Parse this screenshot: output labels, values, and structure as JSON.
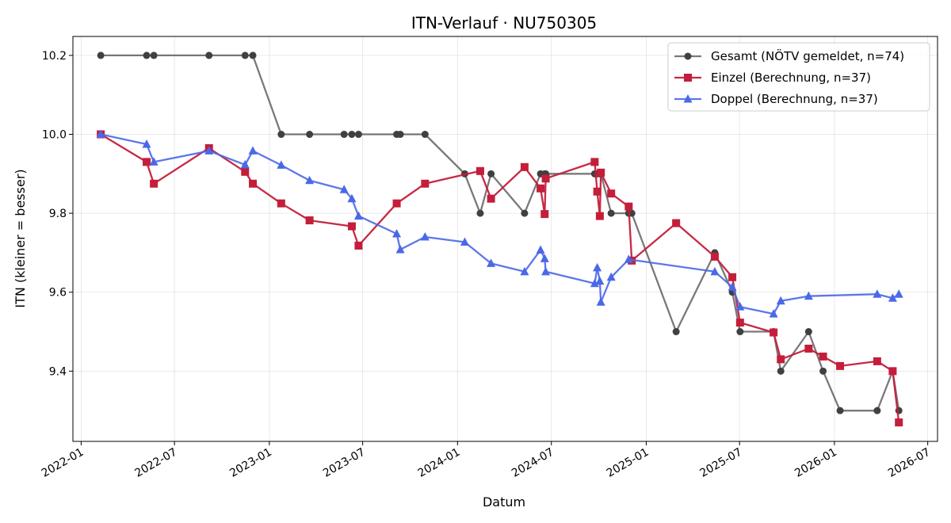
{
  "chart_data": {
    "type": "line",
    "title": "ITN-Verlauf · NU750305",
    "xlabel": "Datum",
    "ylabel": "ITN  (kleiner = besser)",
    "xlim": [
      "2021-12-16",
      "2026-07-20"
    ],
    "ylim": [
      9.222,
      10.248
    ],
    "grid": true,
    "legend_position": "top-right",
    "x_ticks": [
      "2022-01-01",
      "2022-07-01",
      "2023-01-01",
      "2023-07-01",
      "2024-01-01",
      "2024-07-01",
      "2025-01-01",
      "2025-07-01",
      "2026-01-01",
      "2026-07-01"
    ],
    "x_tick_labels": [
      "2022-01",
      "2022-07",
      "2023-01",
      "2023-07",
      "2024-01",
      "2024-07",
      "2025-01",
      "2025-07",
      "2026-01",
      "2026-07"
    ],
    "y_ticks": [
      9.4,
      9.6,
      9.8,
      10.0,
      10.2
    ],
    "y_tick_labels": [
      "9.4",
      "9.6",
      "9.8",
      "10.0",
      "10.2"
    ],
    "series": [
      {
        "name": "Gesamt (NÖTV gemeldet, n=74)",
        "color": "#404040",
        "marker": "circle",
        "line_opacity": 0.7,
        "x": [
          "2022-02-08",
          "2022-05-08",
          "2022-05-22",
          "2022-09-06",
          "2022-11-15",
          "2022-11-30",
          "2023-01-24",
          "2023-03-20",
          "2023-05-26",
          "2023-06-10",
          "2023-06-23",
          "2023-09-05",
          "2023-09-12",
          "2023-10-30",
          "2024-01-15",
          "2024-02-14",
          "2024-03-06",
          "2024-05-10",
          "2024-06-10",
          "2024-06-18",
          "2024-06-20",
          "2024-09-23",
          "2024-09-28",
          "2024-10-03",
          "2024-10-05",
          "2024-10-25",
          "2024-11-28",
          "2024-12-04",
          "2025-02-28",
          "2025-05-14",
          "2025-06-17",
          "2025-07-02",
          "2025-09-05",
          "2025-09-19",
          "2025-11-12",
          "2025-12-10",
          "2026-01-12",
          "2026-03-25",
          "2026-04-24",
          "2026-05-06"
        ],
        "y": [
          10.2,
          10.2,
          10.2,
          10.2,
          10.2,
          10.2,
          10.0,
          10.0,
          10.0,
          10.0,
          10.0,
          10.0,
          10.0,
          10.0,
          9.9,
          9.8,
          9.9,
          9.8,
          9.9,
          9.9,
          9.9,
          9.9,
          9.9,
          9.9,
          9.9,
          9.8,
          9.8,
          9.8,
          9.5,
          9.7,
          9.6,
          9.5,
          9.5,
          9.4,
          9.5,
          9.4,
          9.3,
          9.3,
          9.4,
          9.3
        ]
      },
      {
        "name": "Einzel (Berechnung, n=37)",
        "color": "#c41e3a",
        "marker": "square",
        "line_opacity": 0.95,
        "x": [
          "2022-02-08",
          "2022-05-08",
          "2022-05-22",
          "2022-09-06",
          "2022-11-15",
          "2022-11-30",
          "2023-01-24",
          "2023-03-20",
          "2023-06-10",
          "2023-06-23",
          "2023-09-05",
          "2023-10-30",
          "2024-02-14",
          "2024-03-06",
          "2024-05-10",
          "2024-06-10",
          "2024-06-18",
          "2024-06-20",
          "2024-09-23",
          "2024-09-28",
          "2024-10-03",
          "2024-10-05",
          "2024-10-25",
          "2024-11-28",
          "2024-12-04",
          "2025-02-28",
          "2025-05-14",
          "2025-06-17",
          "2025-07-02",
          "2025-09-05",
          "2025-09-19",
          "2025-11-12",
          "2025-12-10",
          "2026-01-12",
          "2026-03-25",
          "2026-04-24",
          "2026-05-06"
        ],
        "y": [
          10.0,
          9.93,
          9.875,
          9.965,
          9.905,
          9.875,
          9.825,
          9.782,
          9.767,
          9.718,
          9.825,
          9.875,
          9.907,
          9.837,
          9.917,
          9.863,
          9.798,
          9.888,
          9.93,
          9.855,
          9.793,
          9.903,
          9.85,
          9.817,
          9.68,
          9.775,
          9.69,
          9.638,
          9.523,
          9.498,
          9.43,
          9.457,
          9.437,
          9.413,
          9.425,
          9.4,
          9.27
        ]
      },
      {
        "name": "Doppel (Berechnung, n=37)",
        "color": "#4a68e8",
        "marker": "triangle",
        "line_opacity": 0.9,
        "x": [
          "2022-02-08",
          "2022-05-08",
          "2022-05-22",
          "2022-09-06",
          "2022-11-15",
          "2022-11-30",
          "2023-01-24",
          "2023-03-20",
          "2023-05-26",
          "2023-06-10",
          "2023-06-23",
          "2023-09-05",
          "2023-09-12",
          "2023-10-30",
          "2024-01-15",
          "2024-03-06",
          "2024-05-10",
          "2024-06-10",
          "2024-06-18",
          "2024-06-20",
          "2024-09-23",
          "2024-09-28",
          "2024-10-03",
          "2024-10-05",
          "2024-10-25",
          "2024-11-28",
          "2025-05-14",
          "2025-06-17",
          "2025-07-02",
          "2025-09-05",
          "2025-09-19",
          "2025-11-12",
          "2026-03-25",
          "2026-04-24",
          "2026-05-06"
        ],
        "y": [
          10.0,
          9.975,
          9.93,
          9.958,
          9.923,
          9.958,
          9.922,
          9.883,
          9.86,
          9.837,
          9.793,
          9.748,
          9.708,
          9.74,
          9.727,
          9.673,
          9.652,
          9.707,
          9.685,
          9.652,
          9.622,
          9.662,
          9.628,
          9.575,
          9.638,
          9.683,
          9.652,
          9.613,
          9.563,
          9.545,
          9.578,
          9.59,
          9.595,
          9.585,
          9.595
        ]
      }
    ]
  }
}
